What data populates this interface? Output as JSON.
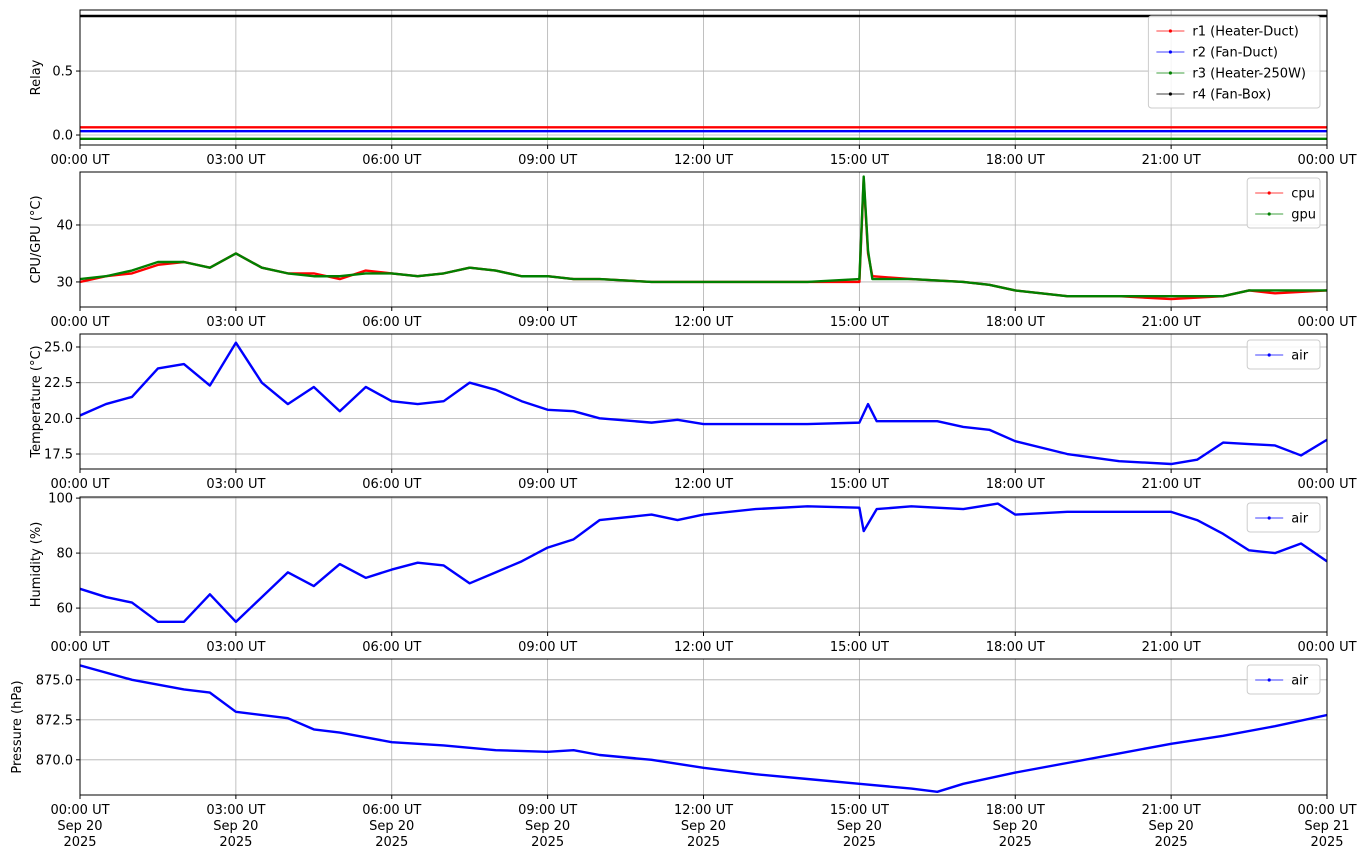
{
  "chart_data": [
    {
      "type": "line",
      "ylabel": "Relay",
      "x": [
        "2025-09-20T00:00",
        "2025-09-21T00:00"
      ],
      "series": [
        {
          "name": "r1 (Heater-Duct)",
          "color": "#ff0000",
          "values": [
            0.06,
            0.06
          ]
        },
        {
          "name": "r2 (Fan-Duct)",
          "color": "#0000ff",
          "values": [
            0.03,
            0.03
          ]
        },
        {
          "name": "r3 (Heater-250W)",
          "color": "#008000",
          "values": [
            -0.03,
            -0.03
          ]
        },
        {
          "name": "r4 (Fan-Box)",
          "color": "#000000",
          "values": [
            0.93,
            0.93
          ]
        }
      ],
      "xlim": [
        "2025-09-20T00:00",
        "2025-09-21T00:00"
      ],
      "xticks": [
        {
          "value": "2025-09-20T00:00",
          "label": "00:00 UT"
        },
        {
          "value": "2025-09-20T03:00",
          "label": "03:00 UT"
        },
        {
          "value": "2025-09-20T06:00",
          "label": "06:00 UT"
        },
        {
          "value": "2025-09-20T09:00",
          "label": "09:00 UT"
        },
        {
          "value": "2025-09-20T12:00",
          "label": "12:00 UT"
        },
        {
          "value": "2025-09-20T15:00",
          "label": "15:00 UT"
        },
        {
          "value": "2025-09-20T18:00",
          "label": "18:00 UT"
        },
        {
          "value": "2025-09-20T21:00",
          "label": "21:00 UT"
        },
        {
          "value": "2025-09-21T00:00",
          "label": "00:00 UT"
        }
      ],
      "ylim": [
        -0.078,
        0.977
      ],
      "yticks": [
        {
          "value": 0,
          "label": "0.0"
        },
        0.5
      ],
      "grid": true,
      "legend": "upper right"
    },
    {
      "type": "line",
      "ylabel": "CPU/GPU (°C)",
      "x": [
        "2025-09-20T00:00",
        "2025-09-20T00:30",
        "2025-09-20T01:00",
        "2025-09-20T01:30",
        "2025-09-20T02:00",
        "2025-09-20T02:30",
        "2025-09-20T03:00",
        "2025-09-20T03:30",
        "2025-09-20T04:00",
        "2025-09-20T04:30",
        "2025-09-20T05:00",
        "2025-09-20T05:30",
        "2025-09-20T06:00",
        "2025-09-20T06:30",
        "2025-09-20T07:00",
        "2025-09-20T07:30",
        "2025-09-20T08:00",
        "2025-09-20T08:30",
        "2025-09-20T09:00",
        "2025-09-20T09:30",
        "2025-09-20T10:00",
        "2025-09-20T11:00",
        "2025-09-20T12:00",
        "2025-09-20T13:00",
        "2025-09-20T14:00",
        "2025-09-20T15:00",
        "2025-09-20T15:05",
        "2025-09-20T15:10",
        "2025-09-20T15:15",
        "2025-09-20T16:00",
        "2025-09-20T17:00",
        "2025-09-20T17:30",
        "2025-09-20T18:00",
        "2025-09-20T18:30",
        "2025-09-20T19:00",
        "2025-09-20T20:00",
        "2025-09-20T21:00",
        "2025-09-20T22:00",
        "2025-09-20T22:30",
        "2025-09-20T23:00",
        "2025-09-21T00:00"
      ],
      "series": [
        {
          "name": "cpu",
          "color": "#ff0000",
          "values": [
            30,
            31,
            31.5,
            33,
            33.5,
            32.5,
            35,
            32.5,
            31.5,
            31.5,
            30.5,
            32,
            31.5,
            31,
            31.5,
            32.5,
            32,
            31,
            31,
            30.5,
            30.5,
            30,
            30,
            30,
            30,
            30,
            48,
            35,
            31,
            30.5,
            30,
            29.5,
            28.5,
            28,
            27.5,
            27.5,
            27,
            27.5,
            28.5,
            28,
            28.5
          ]
        },
        {
          "name": "gpu",
          "color": "#008000",
          "values": [
            30.5,
            31,
            32,
            33.5,
            33.5,
            32.5,
            35,
            32.5,
            31.5,
            31,
            31,
            31.5,
            31.5,
            31,
            31.5,
            32.5,
            32,
            31,
            31,
            30.5,
            30.5,
            30,
            30,
            30,
            30,
            30.5,
            48.5,
            35.5,
            30.5,
            30.5,
            30,
            29.5,
            28.5,
            28,
            27.5,
            27.5,
            27.5,
            27.5,
            28.5,
            28.5,
            28.5
          ]
        }
      ],
      "xlim": [
        "2025-09-20T00:00",
        "2025-09-21T00:00"
      ],
      "xticks": [
        {
          "value": "2025-09-20T00:00",
          "label": "00:00 UT"
        },
        {
          "value": "2025-09-20T03:00",
          "label": "03:00 UT"
        },
        {
          "value": "2025-09-20T06:00",
          "label": "06:00 UT"
        },
        {
          "value": "2025-09-20T09:00",
          "label": "09:00 UT"
        },
        {
          "value": "2025-09-20T12:00",
          "label": "12:00 UT"
        },
        {
          "value": "2025-09-20T15:00",
          "label": "15:00 UT"
        },
        {
          "value": "2025-09-20T18:00",
          "label": "18:00 UT"
        },
        {
          "value": "2025-09-20T21:00",
          "label": "21:00 UT"
        },
        {
          "value": "2025-09-21T00:00",
          "label": "00:00 UT"
        }
      ],
      "ylim": [
        25.6,
        49.3
      ],
      "yticks": [
        30,
        40
      ],
      "grid": true,
      "legend": "upper right"
    },
    {
      "type": "line",
      "ylabel": "Temperature (°C)",
      "x": [
        "2025-09-20T00:00",
        "2025-09-20T00:30",
        "2025-09-20T01:00",
        "2025-09-20T01:30",
        "2025-09-20T02:00",
        "2025-09-20T02:30",
        "2025-09-20T03:00",
        "2025-09-20T03:30",
        "2025-09-20T04:00",
        "2025-09-20T04:30",
        "2025-09-20T05:00",
        "2025-09-20T05:30",
        "2025-09-20T06:00",
        "2025-09-20T06:30",
        "2025-09-20T07:00",
        "2025-09-20T07:30",
        "2025-09-20T08:00",
        "2025-09-20T08:30",
        "2025-09-20T09:00",
        "2025-09-20T09:30",
        "2025-09-20T10:00",
        "2025-09-20T11:00",
        "2025-09-20T11:30",
        "2025-09-20T12:00",
        "2025-09-20T13:00",
        "2025-09-20T14:00",
        "2025-09-20T15:00",
        "2025-09-20T15:10",
        "2025-09-20T15:20",
        "2025-09-20T16:00",
        "2025-09-20T16:30",
        "2025-09-20T17:00",
        "2025-09-20T17:30",
        "2025-09-20T18:00",
        "2025-09-20T19:00",
        "2025-09-20T20:00",
        "2025-09-20T21:00",
        "2025-09-20T21:30",
        "2025-09-20T22:00",
        "2025-09-20T22:30",
        "2025-09-20T23:00",
        "2025-09-20T23:30",
        "2025-09-21T00:00"
      ],
      "series": [
        {
          "name": "air",
          "color": "#0000ff",
          "values": [
            20.2,
            21,
            21.5,
            23.5,
            23.8,
            22.3,
            25.3,
            22.5,
            21,
            22.2,
            20.5,
            22.2,
            21.2,
            21,
            21.2,
            22.5,
            22,
            21.2,
            20.6,
            20.5,
            20,
            19.7,
            19.9,
            19.6,
            19.6,
            19.6,
            19.7,
            21,
            19.8,
            19.8,
            19.8,
            19.4,
            19.2,
            18.4,
            17.5,
            17,
            16.8,
            17.1,
            18.3,
            18.2,
            18.1,
            17.4,
            18.5
          ]
        }
      ],
      "xlim": [
        "2025-09-20T00:00",
        "2025-09-21T00:00"
      ],
      "xticks": [
        {
          "value": "2025-09-20T00:00",
          "label": "00:00 UT"
        },
        {
          "value": "2025-09-20T03:00",
          "label": "03:00 UT"
        },
        {
          "value": "2025-09-20T06:00",
          "label": "06:00 UT"
        },
        {
          "value": "2025-09-20T09:00",
          "label": "09:00 UT"
        },
        {
          "value": "2025-09-20T12:00",
          "label": "12:00 UT"
        },
        {
          "value": "2025-09-20T15:00",
          "label": "15:00 UT"
        },
        {
          "value": "2025-09-20T18:00",
          "label": "18:00 UT"
        },
        {
          "value": "2025-09-20T21:00",
          "label": "21:00 UT"
        },
        {
          "value": "2025-09-21T00:00",
          "label": "00:00 UT"
        }
      ],
      "ylim": [
        16.45,
        25.91
      ],
      "yticks": [
        17.5,
        {
          "value": 20,
          "label": "20.0"
        },
        22.5,
        {
          "value": 25,
          "label": "25.0"
        }
      ],
      "grid": true,
      "legend": "upper right"
    },
    {
      "type": "line",
      "ylabel": "Humidity (%)",
      "x": [
        "2025-09-20T00:00",
        "2025-09-20T00:30",
        "2025-09-20T01:00",
        "2025-09-20T01:30",
        "2025-09-20T02:00",
        "2025-09-20T02:30",
        "2025-09-20T03:00",
        "2025-09-20T03:30",
        "2025-09-20T04:00",
        "2025-09-20T04:30",
        "2025-09-20T05:00",
        "2025-09-20T05:30",
        "2025-09-20T06:00",
        "2025-09-20T06:30",
        "2025-09-20T07:00",
        "2025-09-20T07:30",
        "2025-09-20T08:00",
        "2025-09-20T08:30",
        "2025-09-20T09:00",
        "2025-09-20T09:30",
        "2025-09-20T10:00",
        "2025-09-20T11:00",
        "2025-09-20T11:30",
        "2025-09-20T12:00",
        "2025-09-20T13:00",
        "2025-09-20T14:00",
        "2025-09-20T15:00",
        "2025-09-20T15:05",
        "2025-09-20T15:20",
        "2025-09-20T16:00",
        "2025-09-20T17:00",
        "2025-09-20T17:40",
        "2025-09-20T18:00",
        "2025-09-20T19:00",
        "2025-09-20T20:00",
        "2025-09-20T21:00",
        "2025-09-20T21:30",
        "2025-09-20T22:00",
        "2025-09-20T22:30",
        "2025-09-20T23:00",
        "2025-09-20T23:30",
        "2025-09-21T00:00"
      ],
      "series": [
        {
          "name": "air",
          "color": "#0000ff",
          "values": [
            67,
            64,
            62,
            55,
            55,
            65,
            55,
            64,
            73,
            68,
            76,
            71,
            74,
            76.5,
            75.5,
            69,
            73,
            77,
            82,
            85,
            92,
            94,
            92,
            94,
            96,
            97,
            96.5,
            88,
            96,
            97,
            96,
            98,
            94,
            95,
            95,
            95,
            92,
            87,
            81,
            80,
            83.5,
            77
          ]
        }
      ],
      "xlim": [
        "2025-09-20T00:00",
        "2025-09-21T00:00"
      ],
      "xticks": [
        {
          "value": "2025-09-20T00:00",
          "label": "00:00 UT"
        },
        {
          "value": "2025-09-20T03:00",
          "label": "03:00 UT"
        },
        {
          "value": "2025-09-20T06:00",
          "label": "06:00 UT"
        },
        {
          "value": "2025-09-20T09:00",
          "label": "09:00 UT"
        },
        {
          "value": "2025-09-20T12:00",
          "label": "12:00 UT"
        },
        {
          "value": "2025-09-20T15:00",
          "label": "15:00 UT"
        },
        {
          "value": "2025-09-20T18:00",
          "label": "18:00 UT"
        },
        {
          "value": "2025-09-20T21:00",
          "label": "21:00 UT"
        },
        {
          "value": "2025-09-21T00:00",
          "label": "00:00 UT"
        }
      ],
      "ylim": [
        51.3,
        100.4
      ],
      "yticks": [
        60,
        80,
        100
      ],
      "grid": true,
      "legend": "upper right"
    },
    {
      "type": "line",
      "ylabel": "Pressure (hPa)",
      "x": [
        "2025-09-20T00:00",
        "2025-09-20T01:00",
        "2025-09-20T02:00",
        "2025-09-20T02:30",
        "2025-09-20T03:00",
        "2025-09-20T04:00",
        "2025-09-20T04:30",
        "2025-09-20T05:00",
        "2025-09-20T06:00",
        "2025-09-20T07:00",
        "2025-09-20T08:00",
        "2025-09-20T09:00",
        "2025-09-20T09:30",
        "2025-09-20T10:00",
        "2025-09-20T11:00",
        "2025-09-20T12:00",
        "2025-09-20T13:00",
        "2025-09-20T14:00",
        "2025-09-20T15:00",
        "2025-09-20T16:00",
        "2025-09-20T16:30",
        "2025-09-20T17:00",
        "2025-09-20T18:00",
        "2025-09-20T19:00",
        "2025-09-20T20:00",
        "2025-09-20T21:00",
        "2025-09-20T22:00",
        "2025-09-20T23:00",
        "2025-09-21T00:00"
      ],
      "series": [
        {
          "name": "air",
          "color": "#0000ff",
          "values": [
            875.9,
            875.0,
            874.4,
            874.2,
            873.0,
            872.6,
            871.9,
            871.7,
            871.1,
            870.9,
            870.6,
            870.5,
            870.6,
            870.3,
            870.0,
            869.5,
            869.1,
            868.8,
            868.5,
            868.2,
            868.0,
            868.5,
            869.2,
            869.8,
            870.4,
            871.0,
            871.5,
            872.1,
            872.8
          ]
        }
      ],
      "xlim": [
        "2025-09-20T00:00",
        "2025-09-21T00:00"
      ],
      "xticks": [
        {
          "value": "2025-09-20T00:00",
          "label": [
            "00:00 UT",
            "Sep 20",
            "2025"
          ]
        },
        {
          "value": "2025-09-20T03:00",
          "label": [
            "03:00 UT",
            "Sep 20",
            "2025"
          ]
        },
        {
          "value": "2025-09-20T06:00",
          "label": [
            "06:00 UT",
            "Sep 20",
            "2025"
          ]
        },
        {
          "value": "2025-09-20T09:00",
          "label": [
            "09:00 UT",
            "Sep 20",
            "2025"
          ]
        },
        {
          "value": "2025-09-20T12:00",
          "label": [
            "12:00 UT",
            "Sep 20",
            "2025"
          ]
        },
        {
          "value": "2025-09-20T15:00",
          "label": [
            "15:00 UT",
            "Sep 20",
            "2025"
          ]
        },
        {
          "value": "2025-09-20T18:00",
          "label": [
            "18:00 UT",
            "Sep 20",
            "2025"
          ]
        },
        {
          "value": "2025-09-20T21:00",
          "label": [
            "21:00 UT",
            "Sep 20",
            "2025"
          ]
        },
        {
          "value": "2025-09-21T00:00",
          "label": [
            "00:00 UT",
            "Sep 21",
            "2025"
          ]
        }
      ],
      "ylim": [
        867.8,
        876.3
      ],
      "yticks": [
        {
          "value": 870,
          "label": "870.0"
        },
        872.5,
        {
          "value": 875,
          "label": "875.0"
        }
      ],
      "grid": true,
      "legend": "upper right"
    }
  ]
}
